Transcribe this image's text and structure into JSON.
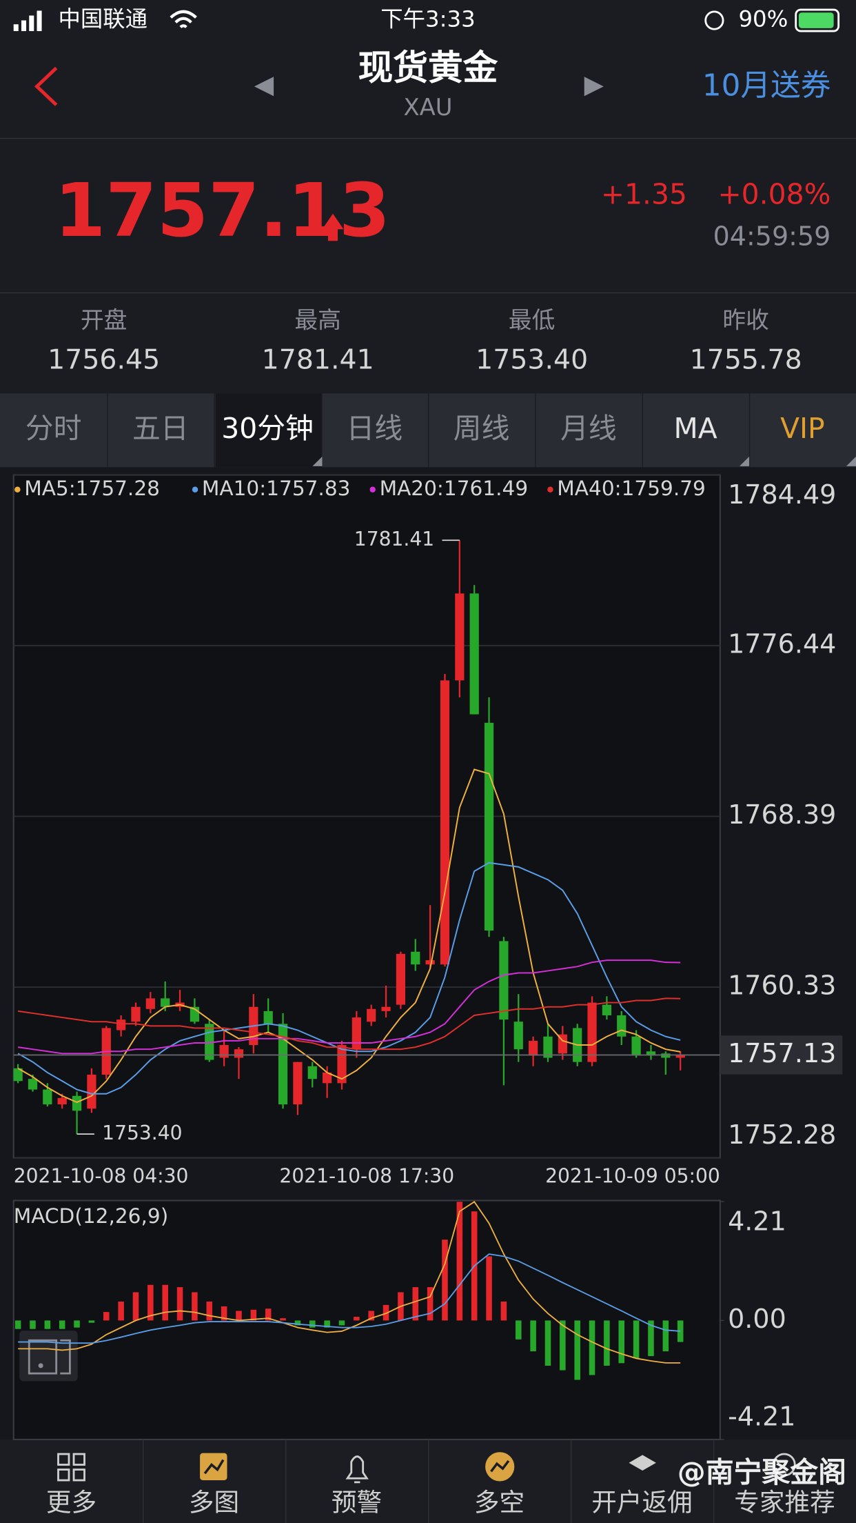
{
  "status_bar": {
    "carrier": "中国联通",
    "time": "下午3:33",
    "battery": "90%"
  },
  "header": {
    "title": "现货黄金",
    "subtitle": "XAU",
    "promo": "10月送券"
  },
  "quote": {
    "price": "1757.13",
    "change": "+1.35",
    "change_pct": "+0.08%",
    "time": "04:59:59"
  },
  "stats": [
    {
      "label": "开盘",
      "value": "1756.45"
    },
    {
      "label": "最高",
      "value": "1781.41"
    },
    {
      "label": "最低",
      "value": "1753.40"
    },
    {
      "label": "昨收",
      "value": "1755.78"
    }
  ],
  "tabs": [
    "分时",
    "五日",
    "30分钟",
    "日线",
    "周线",
    "月线",
    "MA",
    "VIP"
  ],
  "chart_data": [
    {
      "type": "candlestick",
      "up_color": "#e5262a",
      "down_color": "#27a82a",
      "open": [
        1756.5,
        1756.0,
        1755.5,
        1754.8,
        1755.2,
        1754.6,
        1756.2,
        1758.3,
        1758.7,
        1759.3,
        1759.8,
        1759.4,
        1759.4,
        1758.6,
        1757.0,
        1757.0,
        1757.6,
        1759.2,
        1758.6,
        1754.8,
        1756.6,
        1755.8,
        1755.8,
        1757.4,
        1758.7,
        1759.2,
        1759.5,
        1762.0,
        1761.4,
        1761.4,
        1774.8,
        1778.9,
        1772.8,
        1762.5,
        1758.7,
        1757.1,
        1758.0,
        1757.2,
        1758.4,
        1756.8,
        1759.5,
        1759.0,
        1758.0,
        1757.3,
        1757.2,
        1757.0
      ],
      "high": [
        1756.7,
        1756.2,
        1755.8,
        1755.3,
        1755.4,
        1756.5,
        1758.5,
        1759.0,
        1759.6,
        1760.1,
        1760.6,
        1760.2,
        1759.8,
        1758.8,
        1758.3,
        1757.5,
        1760.0,
        1759.8,
        1759.1,
        1756.8,
        1756.8,
        1756.6,
        1757.8,
        1759.2,
        1759.5,
        1760.4,
        1762.0,
        1762.6,
        1764.2,
        1775.1,
        1781.41,
        1779.3,
        1774.0,
        1762.7,
        1760.0,
        1758.0,
        1758.6,
        1758.5,
        1758.6,
        1759.9,
        1759.9,
        1759.2,
        1758.3,
        1757.6,
        1757.3,
        1757.3
      ],
      "low": [
        1755.8,
        1755.4,
        1754.7,
        1754.6,
        1753.4,
        1754.4,
        1756.0,
        1758.0,
        1758.5,
        1759.1,
        1759.2,
        1759.2,
        1758.6,
        1756.8,
        1756.6,
        1756.0,
        1757.2,
        1758.2,
        1754.6,
        1754.3,
        1755.6,
        1755.1,
        1755.5,
        1757.0,
        1758.5,
        1758.9,
        1759.3,
        1761.1,
        1761.2,
        1761.3,
        1774.0,
        1773.2,
        1762.7,
        1755.7,
        1756.8,
        1756.6,
        1756.8,
        1756.9,
        1756.6,
        1756.6,
        1758.8,
        1757.6,
        1757.0,
        1756.9,
        1756.2,
        1756.4
      ],
      "close": [
        1755.9,
        1755.5,
        1754.8,
        1755.1,
        1754.5,
        1756.2,
        1758.4,
        1758.8,
        1759.4,
        1759.8,
        1759.4,
        1759.6,
        1758.7,
        1756.9,
        1757.6,
        1757.4,
        1759.4,
        1758.6,
        1754.8,
        1756.8,
        1756.0,
        1756.3,
        1757.6,
        1758.9,
        1759.3,
        1759.4,
        1761.9,
        1761.4,
        1761.6,
        1774.8,
        1778.9,
        1773.2,
        1763.0,
        1758.8,
        1757.4,
        1757.8,
        1757.0,
        1758.1,
        1756.8,
        1759.6,
        1759.0,
        1758.0,
        1757.1,
        1757.1,
        1757.0,
        1757.13
      ],
      "series": [
        {
          "name": "MA5:1757.28",
          "color": "#f0b040",
          "values": [
            1756.5,
            1756.1,
            1755.6,
            1755.2,
            1754.9,
            1755.2,
            1755.9,
            1756.9,
            1758.0,
            1758.9,
            1759.4,
            1759.5,
            1759.3,
            1758.8,
            1758.3,
            1757.9,
            1758.0,
            1758.2,
            1757.9,
            1757.4,
            1756.9,
            1756.3,
            1756.0,
            1756.4,
            1757.0,
            1758.0,
            1758.9,
            1759.6,
            1761.2,
            1764.8,
            1768.8,
            1770.6,
            1770.4,
            1768.5,
            1764.6,
            1761.0,
            1758.6,
            1757.8,
            1757.6,
            1757.6,
            1758.0,
            1758.3,
            1758.1,
            1757.7,
            1757.4,
            1757.28
          ]
        },
        {
          "name": "MA10:1757.83",
          "color": "#5a9ee8",
          "values": [
            1757.2,
            1756.8,
            1756.3,
            1755.9,
            1755.5,
            1755.3,
            1755.3,
            1755.6,
            1756.2,
            1756.9,
            1757.4,
            1757.8,
            1758.0,
            1758.2,
            1758.3,
            1758.4,
            1758.5,
            1758.6,
            1758.5,
            1758.3,
            1758.0,
            1757.7,
            1757.4,
            1757.3,
            1757.3,
            1757.5,
            1757.8,
            1758.2,
            1758.9,
            1760.8,
            1763.5,
            1765.8,
            1766.2,
            1766.1,
            1766.0,
            1765.7,
            1765.4,
            1764.9,
            1763.8,
            1762.3,
            1760.8,
            1759.4,
            1758.7,
            1758.3,
            1758.0,
            1757.83
          ]
        },
        {
          "name": "MA20:1761.49",
          "color": "#d42fd8",
          "values": [
            1757.5,
            1757.4,
            1757.3,
            1757.2,
            1757.2,
            1757.2,
            1757.3,
            1757.3,
            1757.4,
            1757.4,
            1757.5,
            1757.6,
            1757.7,
            1757.7,
            1757.8,
            1757.8,
            1757.9,
            1757.9,
            1757.9,
            1757.9,
            1757.8,
            1757.7,
            1757.7,
            1757.7,
            1757.7,
            1757.8,
            1757.9,
            1758.0,
            1758.2,
            1758.6,
            1759.4,
            1760.2,
            1760.6,
            1760.9,
            1761.0,
            1761.0,
            1761.1,
            1761.2,
            1761.3,
            1761.5,
            1761.6,
            1761.6,
            1761.6,
            1761.6,
            1761.5,
            1761.49
          ]
        },
        {
          "name": "MA40:1759.79",
          "color": "#e0302c",
          "values": [
            1759.2,
            1759.1,
            1759.0,
            1758.9,
            1758.8,
            1758.7,
            1758.7,
            1758.6,
            1758.6,
            1758.5,
            1758.5,
            1758.5,
            1758.4,
            1758.4,
            1758.4,
            1758.3,
            1758.2,
            1758.1,
            1758.0,
            1757.8,
            1757.7,
            1757.5,
            1757.5,
            1757.4,
            1757.4,
            1757.4,
            1757.4,
            1757.5,
            1757.7,
            1758.0,
            1758.5,
            1759.0,
            1759.1,
            1759.2,
            1759.3,
            1759.3,
            1759.4,
            1759.4,
            1759.5,
            1759.5,
            1759.6,
            1759.6,
            1759.7,
            1759.7,
            1759.8,
            1759.79
          ]
        }
      ],
      "ylim": [
        1752.28,
        1784.49
      ],
      "yticks": [
        1784.49,
        1776.44,
        1768.39,
        1760.33,
        1752.28
      ],
      "grid": true,
      "high_label": "1781.41",
      "low_label": "1753.40",
      "last_label": "1757.13",
      "x_labels": [
        "2021-10-08 04:30",
        "2021-10-08 17:30",
        "2021-10-09 05:00"
      ]
    },
    {
      "type": "macd",
      "title": "MACD(12,26,9)",
      "up_color": "#e5262a",
      "down_color": "#27a82a",
      "histogram": [
        -0.3,
        -0.3,
        -0.3,
        -0.3,
        -0.25,
        -0.08,
        0.3,
        0.67,
        1.0,
        1.26,
        1.26,
        1.18,
        1.0,
        0.67,
        0.5,
        0.34,
        0.38,
        0.42,
        0.08,
        -0.17,
        -0.25,
        -0.25,
        -0.17,
        0.13,
        0.34,
        0.55,
        1.0,
        1.18,
        1.18,
        2.86,
        4.2,
        3.86,
        2.27,
        0.67,
        -0.67,
        -1.09,
        -1.6,
        -1.76,
        -2.1,
        -1.93,
        -1.6,
        -1.51,
        -1.34,
        -1.26,
        -1.09,
        -0.76
      ],
      "series": [
        {
          "color": "#f0b040",
          "values": [
            -1.0,
            -1.0,
            -1.0,
            -1.05,
            -1.0,
            -0.84,
            -0.5,
            -0.25,
            0.0,
            0.17,
            0.29,
            0.34,
            0.29,
            0.17,
            0.08,
            0.0,
            0.04,
            0.08,
            -0.08,
            -0.25,
            -0.34,
            -0.42,
            -0.38,
            -0.17,
            0.08,
            0.25,
            0.5,
            0.67,
            0.84,
            2.0,
            3.86,
            4.2,
            3.44,
            2.35,
            1.43,
            0.76,
            0.25,
            -0.17,
            -0.5,
            -0.76,
            -1.0,
            -1.18,
            -1.34,
            -1.43,
            -1.5,
            -1.5
          ]
        },
        {
          "color": "#5a9ee8",
          "values": [
            -0.76,
            -0.76,
            -0.76,
            -0.8,
            -0.8,
            -0.8,
            -0.71,
            -0.59,
            -0.46,
            -0.34,
            -0.25,
            -0.17,
            -0.08,
            -0.04,
            -0.04,
            -0.04,
            -0.04,
            -0.04,
            -0.08,
            -0.13,
            -0.17,
            -0.21,
            -0.25,
            -0.25,
            -0.21,
            -0.13,
            0.0,
            0.13,
            0.25,
            0.59,
            1.26,
            1.93,
            2.35,
            2.27,
            2.1,
            1.85,
            1.6,
            1.34,
            1.09,
            0.84,
            0.59,
            0.34,
            0.08,
            -0.17,
            -0.34,
            -0.38
          ]
        }
      ],
      "ylim": [
        -4.21,
        4.21
      ],
      "yticks": [
        4.21,
        {
          "value": 0,
          "label": "0.00"
        },
        -4.21
      ]
    }
  ],
  "nav": [
    "更多",
    "多图",
    "预警",
    "多空",
    "开户返佣",
    "专家推荐"
  ],
  "watermark": "@南宁聚金阁"
}
